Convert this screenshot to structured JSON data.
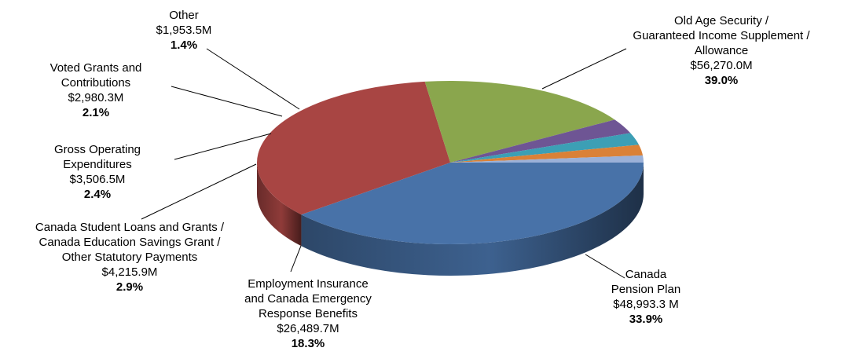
{
  "chart_data": {
    "type": "pie",
    "slices": [
      {
        "lines": [
          "Old Age Security /",
          "Guaranteed Income Supplement /",
          "Allowance"
        ],
        "amount": "$56,270.0M",
        "percent_label": "39.0%",
        "value": 39.0,
        "color": "#4872A8"
      },
      {
        "lines": [
          "Canada",
          "Pension Plan"
        ],
        "amount": "$48,993.3 M",
        "percent_label": "33.9%",
        "value": 33.9,
        "color": "#A84543"
      },
      {
        "lines": [
          "Employment Insurance",
          "and Canada Emergency",
          "Response Benefits"
        ],
        "amount": "$26,489.7M",
        "percent_label": "18.3%",
        "value": 18.3,
        "color": "#8AA64D"
      },
      {
        "lines": [
          "Canada Student Loans and Grants /",
          "Canada Education Savings Grant /",
          "Other Statutory Payments"
        ],
        "amount": "$4,215.9M",
        "percent_label": "2.9%",
        "value": 2.9,
        "color": "#6E5594"
      },
      {
        "lines": [
          "Gross Operating",
          "Expenditures"
        ],
        "amount": "$3,506.5M",
        "percent_label": "2.4%",
        "value": 2.4,
        "color": "#3C9FB5"
      },
      {
        "lines": [
          "Voted Grants and",
          "Contributions"
        ],
        "amount": "$2,980.3M",
        "percent_label": "2.1%",
        "value": 2.1,
        "color": "#DA8137"
      },
      {
        "lines": [
          "Other"
        ],
        "amount": "$1,953.5M",
        "percent_label": "1.4%",
        "value": 1.4,
        "color": "#9BB1D8"
      }
    ],
    "start": "3 o'clock",
    "direction": "clockwise",
    "style": "3d-tilted"
  }
}
